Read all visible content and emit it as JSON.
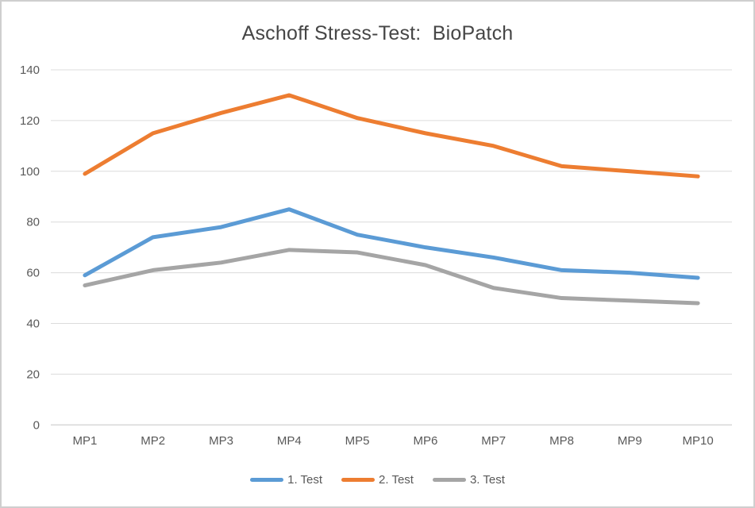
{
  "window": {
    "background": "#ffffff",
    "border_color": "#cfcfcf"
  },
  "chart_data": {
    "type": "line",
    "title": "Aschoff Stress-Test:  BioPatch",
    "title_color": "#464646",
    "categories": [
      "MP1",
      "MP2",
      "MP3",
      "MP4",
      "MP5",
      "MP6",
      "MP7",
      "MP8",
      "MP9",
      "MP10"
    ],
    "series": [
      {
        "name": "1. Test",
        "color": "#5B9BD5",
        "values": [
          59,
          74,
          78,
          85,
          75,
          70,
          66,
          61,
          60,
          58
        ]
      },
      {
        "name": "2. Test",
        "color": "#ED7D31",
        "values": [
          99,
          115,
          123,
          130,
          121,
          115,
          110,
          102,
          100,
          98
        ]
      },
      {
        "name": "3. Test",
        "color": "#A5A5A5",
        "values": [
          55,
          61,
          64,
          69,
          68,
          63,
          54,
          50,
          49,
          48
        ]
      }
    ],
    "y_axis": {
      "min": 0,
      "max": 140,
      "step": 20,
      "tick_labels": [
        "0",
        "20",
        "40",
        "60",
        "80",
        "100",
        "120",
        "140"
      ]
    },
    "x_axis_label_color": "#595959",
    "y_axis_label_color": "#595959",
    "gridline_color": "#dcdcdc",
    "axis_line_color": "#c6c6c6",
    "grid": true,
    "legend_position": "bottom",
    "line_width": 5
  }
}
